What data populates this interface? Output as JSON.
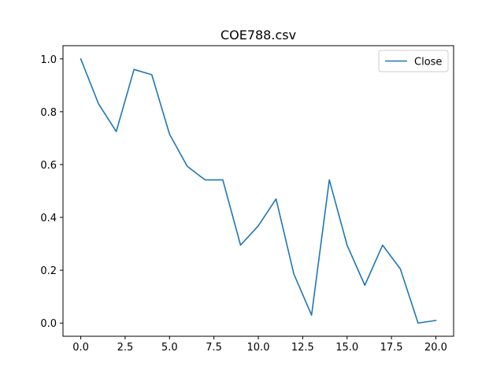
{
  "chart_data": {
    "type": "line",
    "title": "COE788.csv",
    "xlabel": "",
    "ylabel": "",
    "xlim": [
      -1.0,
      21.0
    ],
    "ylim": [
      -0.05,
      1.05
    ],
    "x_ticks": [
      0.0,
      2.5,
      5.0,
      7.5,
      10.0,
      12.5,
      15.0,
      17.5,
      20.0
    ],
    "x_tick_labels": [
      "0.0",
      "2.5",
      "5.0",
      "7.5",
      "10.0",
      "12.5",
      "15.0",
      "17.5",
      "20.0"
    ],
    "y_ticks": [
      0.0,
      0.2,
      0.4,
      0.6,
      0.8,
      1.0
    ],
    "y_tick_labels": [
      "0.0",
      "0.2",
      "0.4",
      "0.6",
      "0.8",
      "1.0"
    ],
    "grid": false,
    "legend_position": "top-right",
    "series": [
      {
        "name": "Close",
        "color": "#1f77b4",
        "x": [
          0,
          1,
          2,
          3,
          4,
          5,
          6,
          7,
          8,
          9,
          10,
          11,
          12,
          13,
          14,
          15,
          16,
          17,
          18,
          19,
          20
        ],
        "y": [
          1.0,
          0.83,
          0.725,
          0.96,
          0.94,
          0.715,
          0.593,
          0.542,
          0.542,
          0.295,
          0.368,
          0.47,
          0.186,
          0.03,
          0.542,
          0.295,
          0.143,
          0.295,
          0.205,
          0.0,
          0.01
        ]
      }
    ]
  }
}
